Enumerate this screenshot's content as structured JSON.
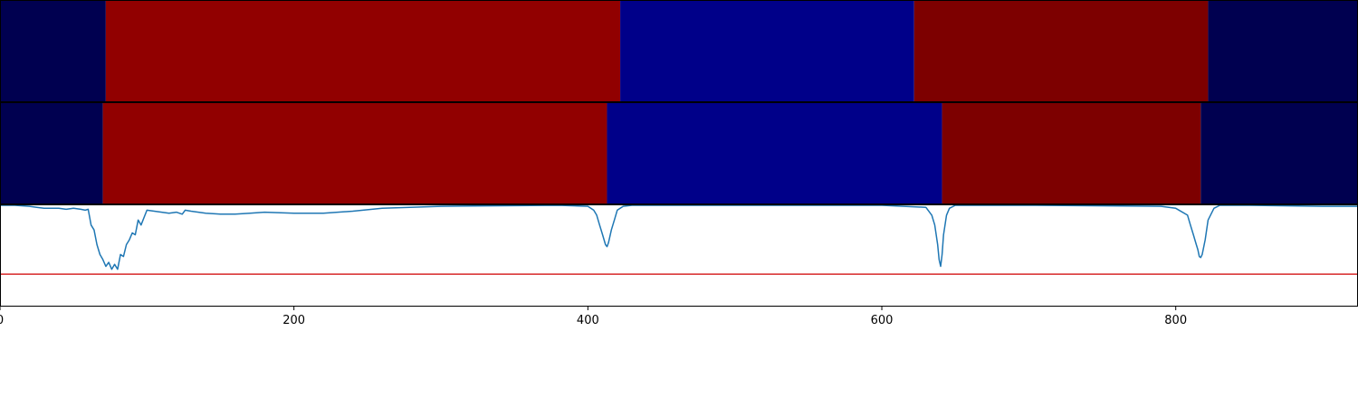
{
  "chart_data": {
    "type": "heatmap",
    "x_range": [
      0,
      924
    ],
    "x_ticks": [
      {
        "value": 0,
        "label": "0"
      },
      {
        "value": 200,
        "label": "200"
      },
      {
        "value": 400,
        "label": "400"
      },
      {
        "value": 600,
        "label": "600"
      },
      {
        "value": 800,
        "label": "800"
      }
    ],
    "segment_rows": [
      {
        "segments": [
          {
            "start": 0,
            "end": 72,
            "color": "#000050"
          },
          {
            "start": 72,
            "end": 422,
            "color": "#910000"
          },
          {
            "start": 422,
            "end": 622,
            "color": "#000089"
          },
          {
            "start": 622,
            "end": 822,
            "color": "#7d0000"
          },
          {
            "start": 822,
            "end": 924,
            "color": "#000050"
          }
        ]
      },
      {
        "segments": [
          {
            "start": 0,
            "end": 70,
            "color": "#000050"
          },
          {
            "start": 70,
            "end": 413,
            "color": "#910000"
          },
          {
            "start": 413,
            "end": 641,
            "color": "#000089"
          },
          {
            "start": 641,
            "end": 817,
            "color": "#7d0000"
          },
          {
            "start": 817,
            "end": 924,
            "color": "#000050"
          }
        ]
      }
    ],
    "line_panel": {
      "y_range": [
        -0.02,
        1.0
      ],
      "threshold": {
        "value": 0.3,
        "color": "#d62728"
      },
      "series_color": "#1f77b4",
      "x": [
        0,
        10,
        20,
        25,
        30,
        35,
        40,
        45,
        50,
        55,
        58,
        60,
        62,
        64,
        66,
        68,
        70,
        72,
        74,
        76,
        78,
        80,
        82,
        84,
        86,
        88,
        90,
        92,
        94,
        96,
        100,
        110,
        115,
        120,
        124,
        126,
        130,
        140,
        150,
        160,
        170,
        180,
        200,
        220,
        240,
        260,
        300,
        380,
        400,
        402,
        404,
        406,
        408,
        410,
        412,
        413,
        414,
        416,
        418,
        420,
        424,
        430,
        500,
        600,
        630,
        634,
        636,
        638,
        639,
        640,
        641,
        642,
        644,
        646,
        650,
        660,
        700,
        790,
        800,
        808,
        810,
        812,
        814,
        815,
        816,
        817,
        818,
        820,
        822,
        826,
        830,
        850,
        900,
        924
      ],
      "y": [
        1.0,
        1.0,
        0.99,
        0.98,
        0.97,
        0.97,
        0.97,
        0.96,
        0.97,
        0.96,
        0.95,
        0.96,
        0.8,
        0.75,
        0.6,
        0.5,
        0.45,
        0.38,
        0.42,
        0.35,
        0.4,
        0.35,
        0.5,
        0.48,
        0.6,
        0.65,
        0.72,
        0.7,
        0.85,
        0.8,
        0.95,
        0.93,
        0.92,
        0.93,
        0.91,
        0.95,
        0.94,
        0.92,
        0.91,
        0.91,
        0.92,
        0.93,
        0.92,
        0.92,
        0.94,
        0.97,
        0.99,
        1.0,
        0.99,
        0.97,
        0.95,
        0.9,
        0.8,
        0.7,
        0.6,
        0.58,
        0.62,
        0.75,
        0.85,
        0.95,
        0.99,
        1.0,
        1.0,
        1.0,
        0.98,
        0.9,
        0.8,
        0.6,
        0.45,
        0.38,
        0.5,
        0.7,
        0.9,
        0.97,
        1.0,
        1.0,
        1.0,
        0.99,
        0.97,
        0.9,
        0.8,
        0.7,
        0.6,
        0.55,
        0.48,
        0.47,
        0.5,
        0.65,
        0.85,
        0.97,
        1.0,
        1.0,
        0.99,
        0.99
      ]
    }
  }
}
